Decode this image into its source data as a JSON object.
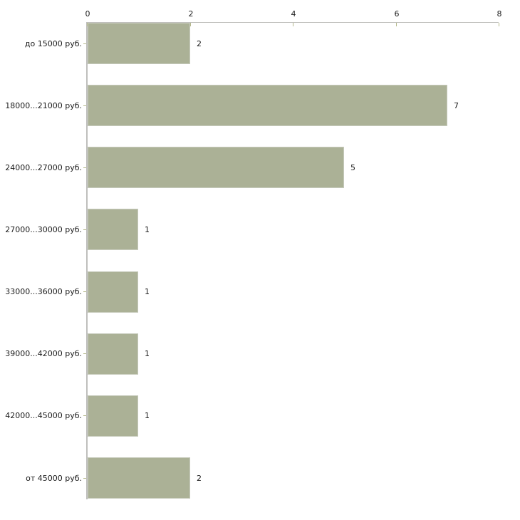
{
  "chart_data": {
    "type": "bar",
    "orientation": "horizontal",
    "title": "",
    "xlabel": "",
    "ylabel": "",
    "categories": [
      "до 15000 руб.",
      "18000...21000 руб.",
      "24000...27000 руб.",
      "27000...30000 руб.",
      "33000...36000 руб.",
      "39000...42000 руб.",
      "42000...45000 руб.",
      "от 45000 руб."
    ],
    "values": [
      2,
      7,
      5,
      1,
      1,
      1,
      1,
      2
    ],
    "value_labels": [
      "2",
      "7",
      "5",
      "1",
      "1",
      "1",
      "1",
      "2"
    ],
    "x_axis": {
      "position": "top",
      "min": 0,
      "max": 8,
      "tick_labels": [
        "0",
        "2",
        "4",
        "6",
        "8"
      ],
      "tick_values": [
        0,
        2,
        4,
        6,
        8
      ]
    },
    "grid": false,
    "legend": false,
    "colors": {
      "bar_fill": "#abb196",
      "bar_border": "#c6cabb",
      "axis_line": "#bfbfbc",
      "tick_mark": "#b5b98c",
      "text": "#1b1b1b",
      "background": "#ffffff"
    }
  }
}
